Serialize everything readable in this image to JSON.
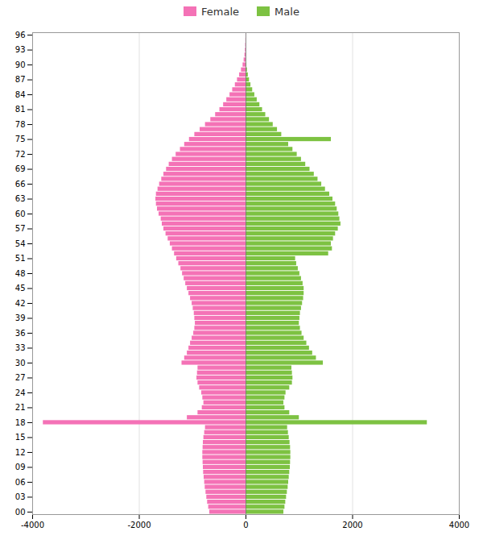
{
  "chart_data": {
    "type": "bar",
    "orientation": "horizontal",
    "legend": "top",
    "grid": true,
    "categories": [
      0,
      1,
      2,
      3,
      4,
      5,
      6,
      7,
      8,
      9,
      10,
      11,
      12,
      13,
      14,
      15,
      16,
      17,
      18,
      19,
      20,
      21,
      22,
      23,
      24,
      25,
      26,
      27,
      28,
      29,
      30,
      31,
      32,
      33,
      34,
      35,
      36,
      37,
      38,
      39,
      40,
      41,
      42,
      43,
      44,
      45,
      46,
      47,
      48,
      49,
      50,
      51,
      52,
      53,
      54,
      55,
      56,
      57,
      58,
      59,
      60,
      61,
      62,
      63,
      64,
      65,
      66,
      67,
      68,
      69,
      70,
      71,
      72,
      73,
      74,
      75,
      76,
      77,
      78,
      79,
      80,
      81,
      82,
      83,
      84,
      85,
      86,
      87,
      88,
      89,
      90,
      91,
      92,
      93,
      94,
      95,
      96
    ],
    "series": [
      {
        "name": "Female",
        "color": "#F472B6",
        "values": [
          -680,
          -700,
          -720,
          -735,
          -750,
          -765,
          -775,
          -785,
          -795,
          -800,
          -805,
          -810,
          -810,
          -805,
          -800,
          -790,
          -775,
          -760,
          -3800,
          -1100,
          -900,
          -820,
          -790,
          -810,
          -830,
          -870,
          -900,
          -920,
          -910,
          -900,
          -1200,
          -1150,
          -1100,
          -1070,
          -1040,
          -1010,
          -980,
          -960,
          -950,
          -960,
          -970,
          -990,
          -1010,
          -1040,
          -1070,
          -1100,
          -1130,
          -1160,
          -1190,
          -1220,
          -1260,
          -1300,
          -1340,
          -1380,
          -1420,
          -1460,
          -1500,
          -1540,
          -1570,
          -1590,
          -1630,
          -1660,
          -1680,
          -1690,
          -1680,
          -1650,
          -1620,
          -1580,
          -1540,
          -1490,
          -1440,
          -1380,
          -1310,
          -1230,
          -1150,
          -1060,
          -960,
          -860,
          -760,
          -660,
          -570,
          -490,
          -420,
          -360,
          -300,
          -250,
          -200,
          -160,
          -120,
          -85,
          -55,
          -35,
          -20,
          -12,
          -7,
          -3,
          -1
        ]
      },
      {
        "name": "Male",
        "color": "#7DC242",
        "values": [
          710,
          730,
          745,
          760,
          775,
          790,
          800,
          810,
          820,
          830,
          835,
          840,
          840,
          835,
          825,
          810,
          795,
          780,
          3400,
          1000,
          820,
          730,
          710,
          730,
          750,
          820,
          870,
          880,
          870,
          860,
          1450,
          1320,
          1250,
          1190,
          1140,
          1090,
          1050,
          1020,
          1000,
          1010,
          1020,
          1040,
          1060,
          1080,
          1090,
          1090,
          1070,
          1040,
          1010,
          980,
          950,
          930,
          1550,
          1620,
          1600,
          1640,
          1680,
          1730,
          1780,
          1760,
          1740,
          1710,
          1680,
          1630,
          1570,
          1490,
          1420,
          1350,
          1280,
          1200,
          1120,
          1040,
          960,
          880,
          800,
          1600,
          670,
          590,
          510,
          440,
          370,
          310,
          260,
          210,
          165,
          125,
          92,
          65,
          43,
          27,
          16,
          9,
          5,
          2,
          1,
          1,
          0
        ]
      }
    ],
    "xlim": [
      -4000,
      4000
    ],
    "xticks": [
      -4000,
      -2000,
      0,
      2000,
      4000
    ],
    "ylim": [
      -0.5,
      96.5
    ],
    "yticks": [
      {
        "value": 0,
        "label": "00"
      },
      {
        "value": 3,
        "label": "03"
      },
      {
        "value": 6,
        "label": "06"
      },
      {
        "value": 9,
        "label": "09"
      },
      12,
      15,
      18,
      21,
      24,
      27,
      30,
      33,
      36,
      39,
      42,
      45,
      48,
      51,
      54,
      57,
      60,
      63,
      66,
      69,
      72,
      75,
      78,
      81,
      84,
      87,
      90,
      93,
      96
    ]
  }
}
